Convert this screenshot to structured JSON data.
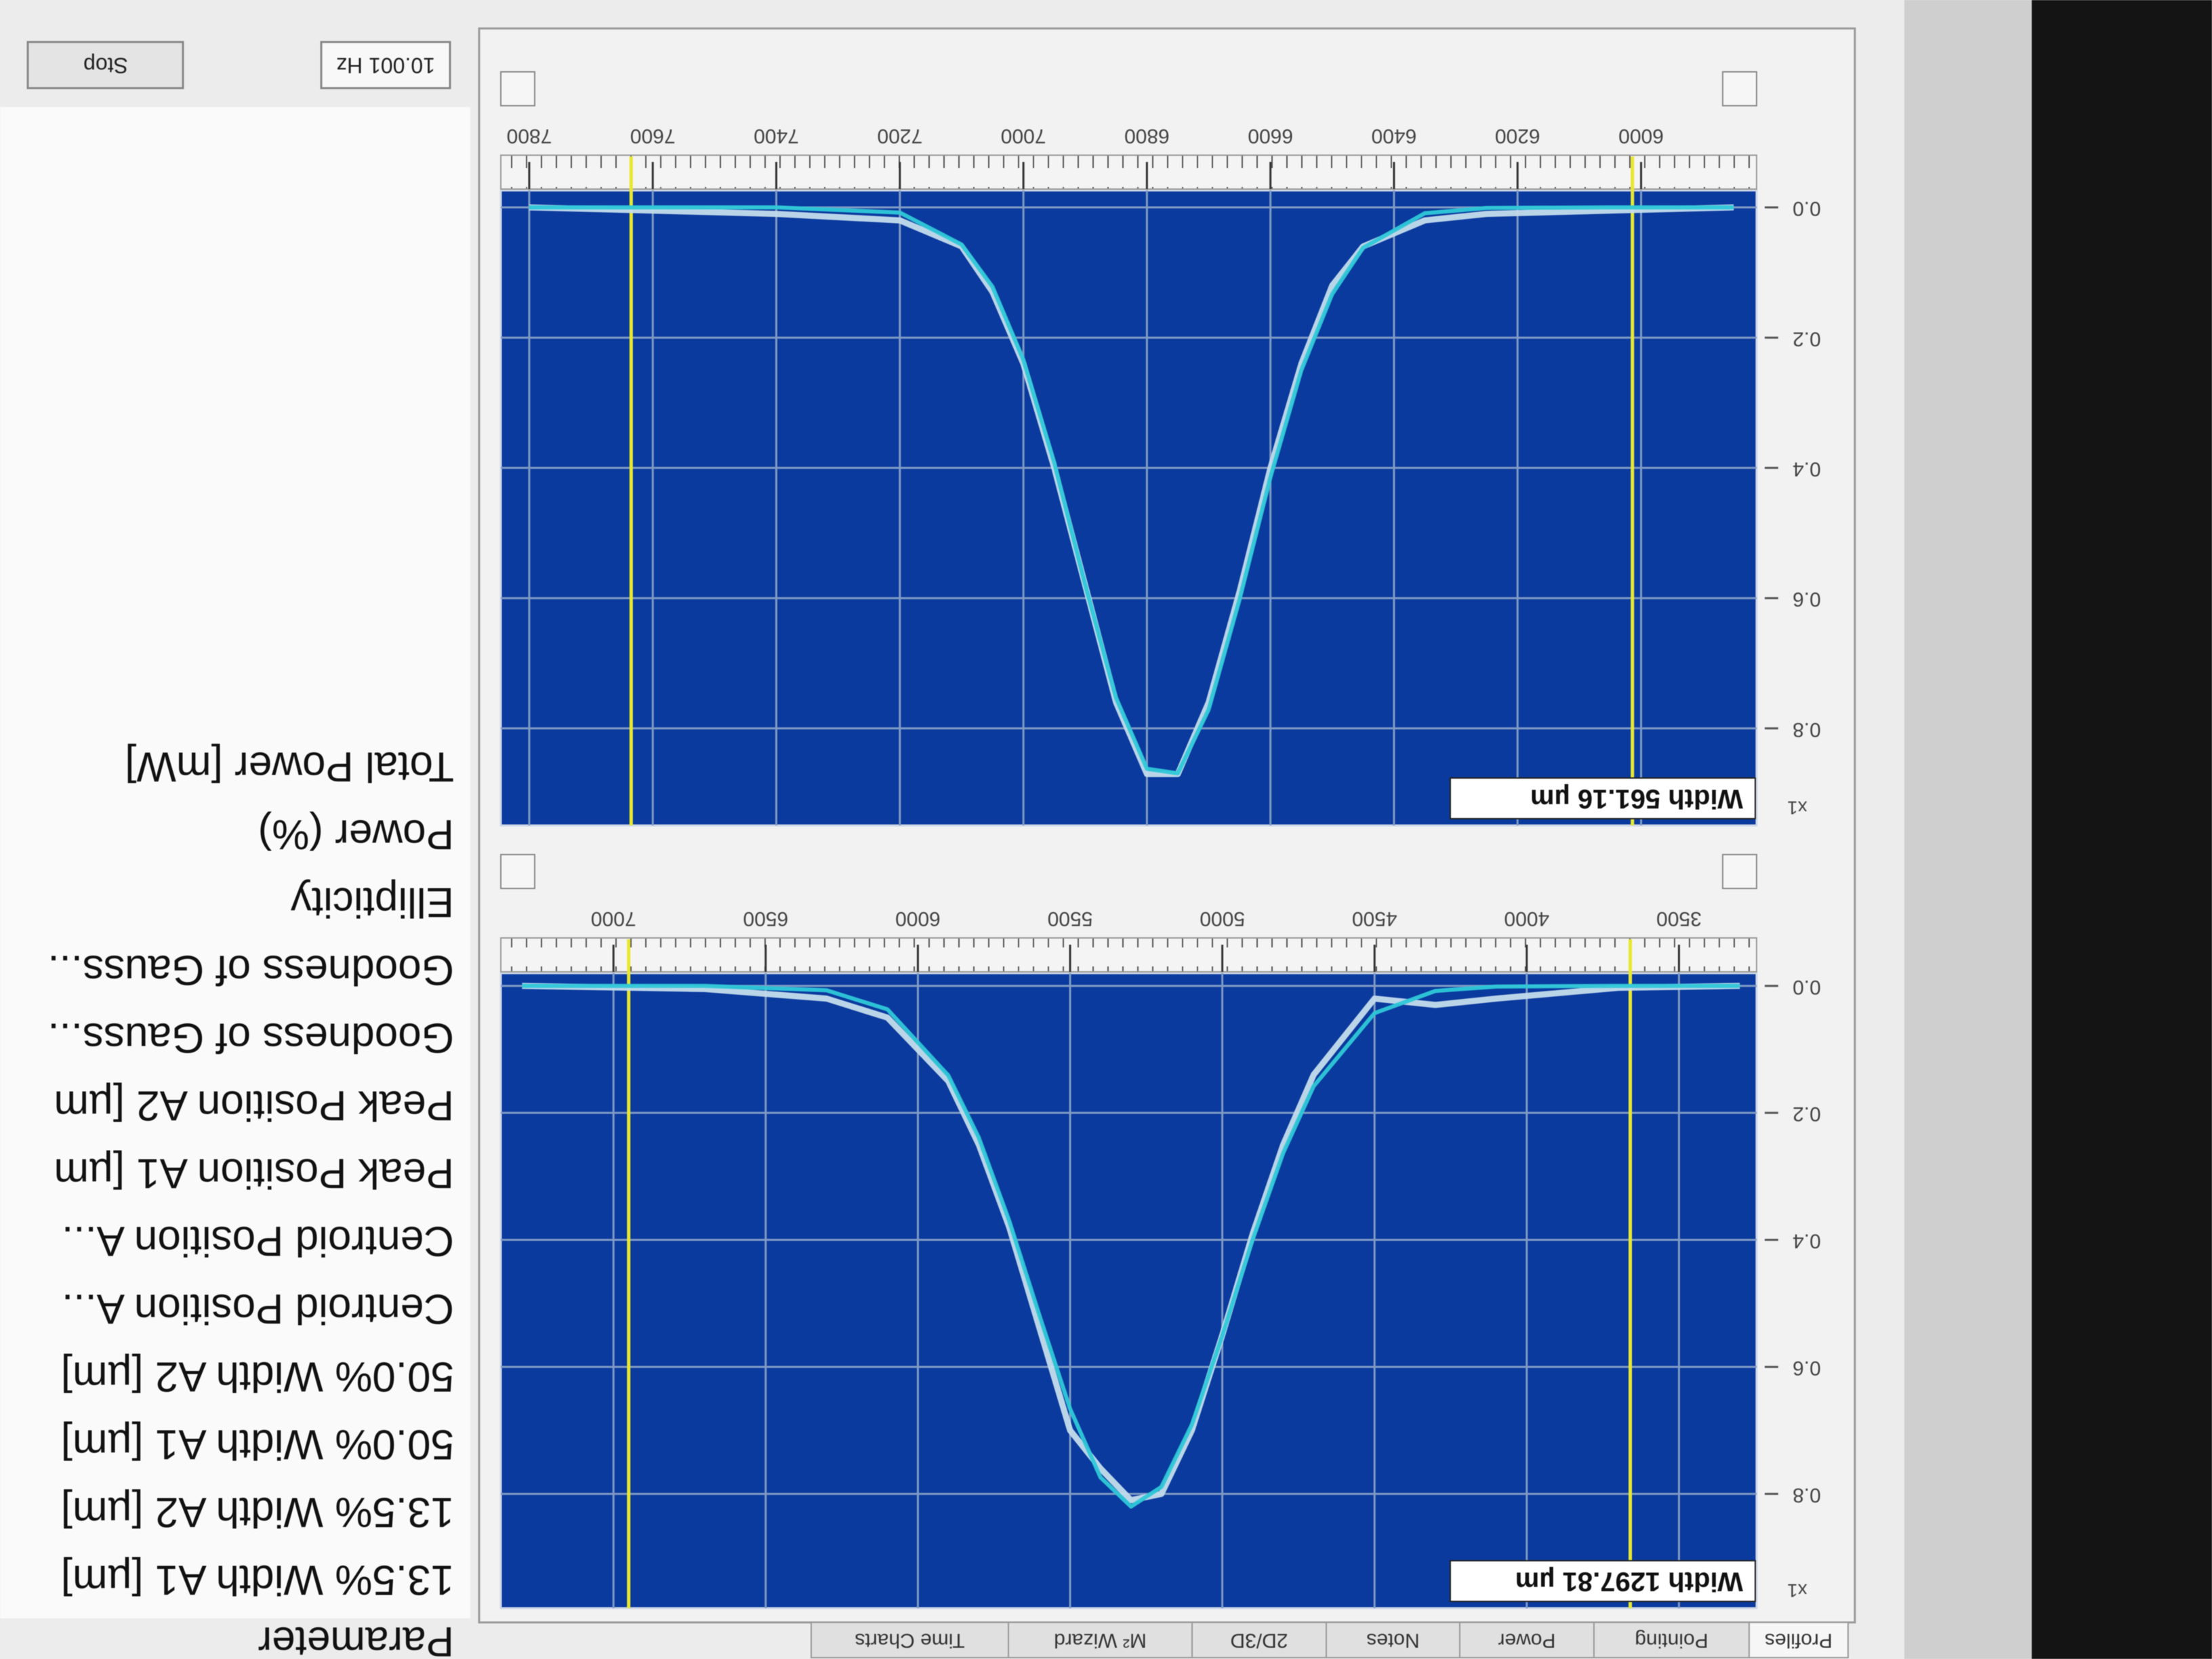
{
  "tabs": [
    "Profiles",
    "Pointing",
    "Power",
    "Notes",
    "2D/3D",
    "M² Wizard",
    "Time Charts"
  ],
  "chart_data": [
    {
      "type": "line",
      "y_label": "x1",
      "annotation": "Width 1297.81 µm",
      "x": [
        3300,
        3700,
        4100,
        4300,
        4500,
        4700,
        4800,
        4900,
        5000,
        5100,
        5200,
        5300,
        5400,
        5500,
        5600,
        5700,
        5800,
        5900,
        6100,
        6300,
        6700,
        7300
      ],
      "series": [
        {
          "color": "#c4dcec",
          "values": [
            0.0,
            0.003,
            0.02,
            0.03,
            0.02,
            0.14,
            0.25,
            0.39,
            0.55,
            0.7,
            0.8,
            0.81,
            0.76,
            0.7,
            0.54,
            0.38,
            0.25,
            0.15,
            0.05,
            0.02,
            0.005,
            0.0
          ]
        },
        {
          "color": "#2ec8d8",
          "values": [
            0.0,
            0.0,
            0.001,
            0.008,
            0.043,
            0.158,
            0.263,
            0.399,
            0.551,
            0.691,
            0.789,
            0.82,
            0.774,
            0.666,
            0.52,
            0.37,
            0.239,
            0.141,
            0.037,
            0.007,
            0.0,
            0.0
          ]
        }
      ],
      "cursors": [
        3660,
        6950
      ],
      "cursor_color": "#e8e830",
      "xlim": [
        3245,
        7370
      ],
      "xticks": [
        3500,
        4000,
        4500,
        5000,
        5500,
        6000,
        6500,
        7000
      ],
      "ylim": [
        -0.02,
        0.98
      ],
      "yticks": [
        {
          "value": 0,
          "label": "0.0"
        },
        0.2,
        0.4,
        0.6,
        0.8
      ],
      "grid": true
    },
    {
      "type": "line",
      "y_label": "x1",
      "annotation": "Width 561.16 µm",
      "x": [
        5850,
        6050,
        6250,
        6350,
        6450,
        6500,
        6550,
        6600,
        6650,
        6700,
        6750,
        6800,
        6850,
        6900,
        6950,
        7000,
        7050,
        7100,
        7200,
        7400,
        7800
      ],
      "series": [
        {
          "color": "#c4dcec",
          "values": [
            0.0,
            0.005,
            0.01,
            0.02,
            0.06,
            0.12,
            0.24,
            0.4,
            0.59,
            0.76,
            0.87,
            0.87,
            0.76,
            0.58,
            0.4,
            0.24,
            0.13,
            0.06,
            0.02,
            0.01,
            0.0
          ]
        },
        {
          "color": "#2ec8d8",
          "values": [
            0.0,
            0.0,
            0.001,
            0.009,
            0.062,
            0.133,
            0.25,
            0.414,
            0.602,
            0.771,
            0.869,
            0.862,
            0.753,
            0.579,
            0.392,
            0.234,
            0.122,
            0.057,
            0.008,
            0.0,
            0.0
          ]
        }
      ],
      "cursors": [
        6014,
        7635
      ],
      "cursor_color": "#e8e830",
      "xlim": [
        5813,
        7846
      ],
      "xticks": [
        6000,
        6200,
        6400,
        6600,
        6800,
        7000,
        7200,
        7400,
        7600,
        7800
      ],
      "ylim": [
        -0.026,
        0.949
      ],
      "yticks": [
        {
          "value": 0,
          "label": "0.0"
        },
        0.2,
        0.4,
        0.6,
        0.8
      ],
      "grid": true
    }
  ],
  "parameters": {
    "header": "Parameter",
    "items": [
      "13.5% Width A1 [µm]",
      "13.5% Width A2 [µm]",
      "50.0% Width A1 [µm]",
      "50.0% Width A2 [µm]",
      "Centroid Position A...",
      "Centroid Position A...",
      "Peak Position A1 [µm",
      "Peak Position A2 [µm",
      "Goodness of Gauss...",
      "Goodness of Gauss...",
      "Ellipticity",
      "Power (%)",
      "Total Power [mW]"
    ]
  },
  "rate": "10.001 Hz",
  "stop_button": "Stop"
}
